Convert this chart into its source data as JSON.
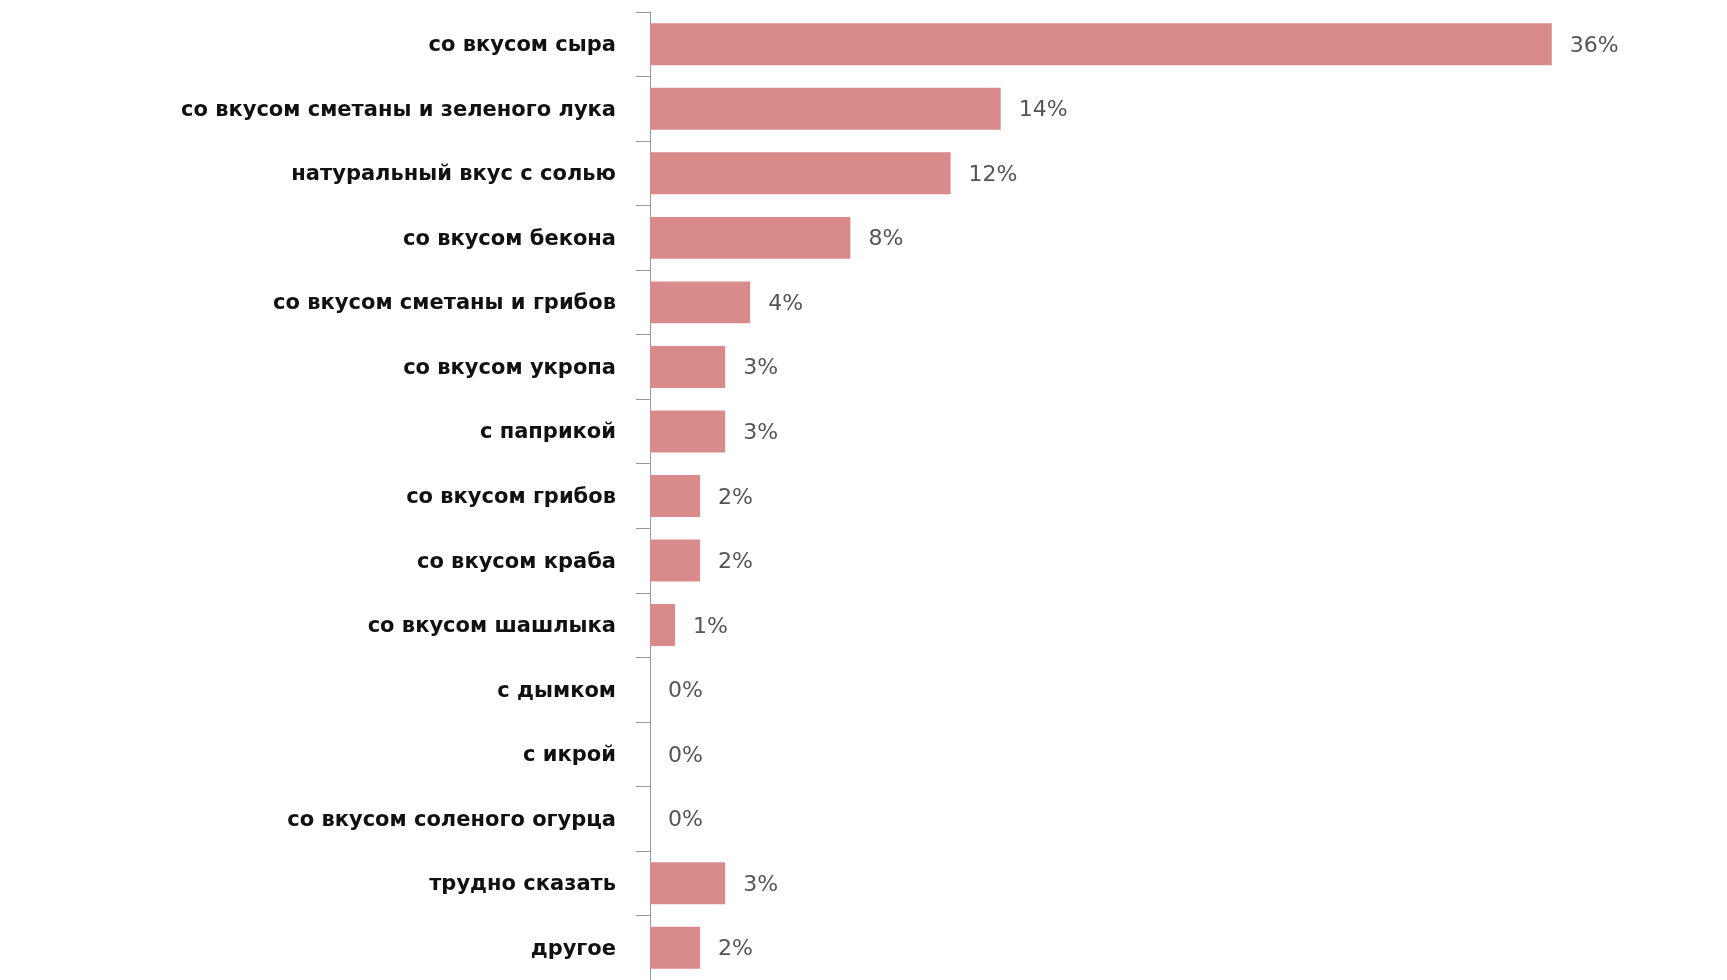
{
  "chart_data": {
    "type": "bar",
    "orientation": "horizontal",
    "categories": [
      "со вкусом сыра",
      "со вкусом сметаны и зеленого лука",
      "натуральный вкус с солью",
      "со вкусом бекона",
      "со вкусом сметаны и грибов",
      "со вкусом укропа",
      "с паприкой",
      "со вкусом грибов",
      "со вкусом краба",
      "со вкусом шашлыка",
      "с дымком",
      "с икрой",
      "со вкусом соленого огурца",
      "трудно сказать",
      "другое"
    ],
    "values": [
      36,
      14,
      12,
      8,
      4,
      3,
      3,
      2,
      2,
      1,
      0,
      0,
      0,
      3,
      2
    ],
    "value_labels": [
      "36%",
      "14%",
      "12%",
      "8%",
      "4%",
      "3%",
      "3%",
      "2%",
      "2%",
      "1%",
      "0%",
      "0%",
      "0%",
      "3%",
      "2%"
    ],
    "color": "#d98b8b",
    "tick_labels": "y"
  }
}
